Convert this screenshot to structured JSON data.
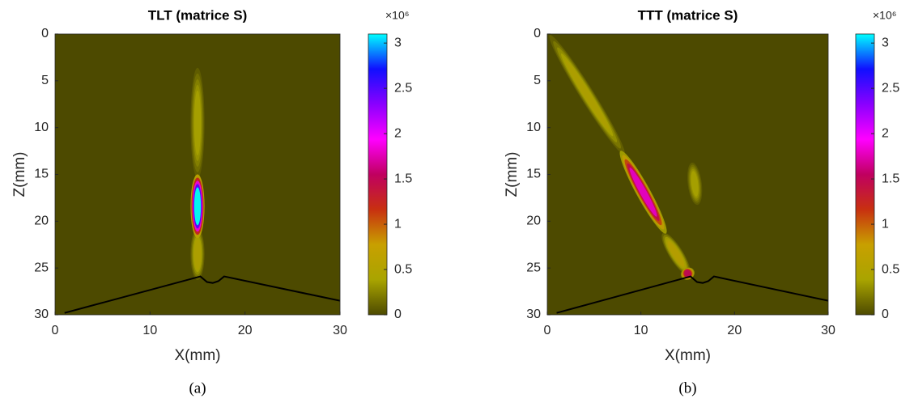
{
  "colormap": [
    "#4d4a00",
    "#a9a400",
    "#c8a000",
    "#c83010",
    "#c00060",
    "#ff00ff",
    "#8a00ff",
    "#1010ff",
    "#00ffff"
  ],
  "chart_data": [
    {
      "type": "heatmap",
      "title": "TLT (matrice S)",
      "xlabel": "X(mm)",
      "ylabel": "Z(mm)",
      "caption": "(a)",
      "xlim": [
        0,
        30
      ],
      "ylim": [
        0,
        30
      ],
      "y_reversed": true,
      "xticks": [
        0,
        10,
        20,
        30
      ],
      "yticks": [
        0,
        5,
        10,
        15,
        20,
        25,
        30
      ],
      "clim": [
        0,
        3.1
      ],
      "cticks": [
        0,
        0.5,
        1,
        1.5,
        2,
        2.5,
        3
      ],
      "cmultiplier": "×10⁶",
      "features": [
        {
          "x": [
            15,
            15
          ],
          "z": [
            4,
            15
          ],
          "peak": 0.4
        },
        {
          "x": [
            15,
            15
          ],
          "z": [
            21,
            26
          ],
          "peak": 0.5
        },
        {
          "x": [
            15,
            15
          ],
          "z": [
            15.3,
            21.5
          ],
          "peak": 3.1
        }
      ],
      "profile": {
        "x": [
          1,
          15.3,
          16,
          16.6,
          17.2,
          17.8,
          30
        ],
        "z": [
          29.8,
          25.9,
          26.5,
          26.6,
          26.4,
          25.9,
          28.5
        ]
      }
    },
    {
      "type": "heatmap",
      "title": "TTT (matrice S)",
      "xlabel": "X(mm)",
      "ylabel": "Z(mm)",
      "caption": "(b)",
      "xlim": [
        0,
        30
      ],
      "ylim": [
        0,
        30
      ],
      "y_reversed": true,
      "xticks": [
        0,
        10,
        20,
        30
      ],
      "yticks": [
        0,
        5,
        10,
        15,
        20,
        25,
        30
      ],
      "clim": [
        0,
        3.1
      ],
      "cticks": [
        0,
        0.5,
        1,
        1.5,
        2,
        2.5,
        3
      ],
      "cmultiplier": "×10⁶",
      "features": [
        {
          "x": [
            0.5,
            8
          ],
          "z": [
            0.5,
            12.5
          ],
          "peak": 0.5
        },
        {
          "x": [
            12.5,
            15
          ],
          "z": [
            21.5,
            25.5
          ],
          "peak": 0.6
        },
        {
          "x": [
            15.5,
            16
          ],
          "z": [
            14,
            18
          ],
          "peak": 0.4
        },
        {
          "x": [
            8,
            12.5
          ],
          "z": [
            12.8,
            21
          ],
          "peak": 1.8
        },
        {
          "x": [
            14.8,
            15.2
          ],
          "z": [
            25.2,
            26
          ],
          "peak": 1.5
        }
      ],
      "profile": {
        "x": [
          1,
          15.3,
          16,
          16.6,
          17.2,
          17.8,
          30
        ],
        "z": [
          29.8,
          25.9,
          26.5,
          26.6,
          26.4,
          25.9,
          28.5
        ]
      }
    }
  ]
}
